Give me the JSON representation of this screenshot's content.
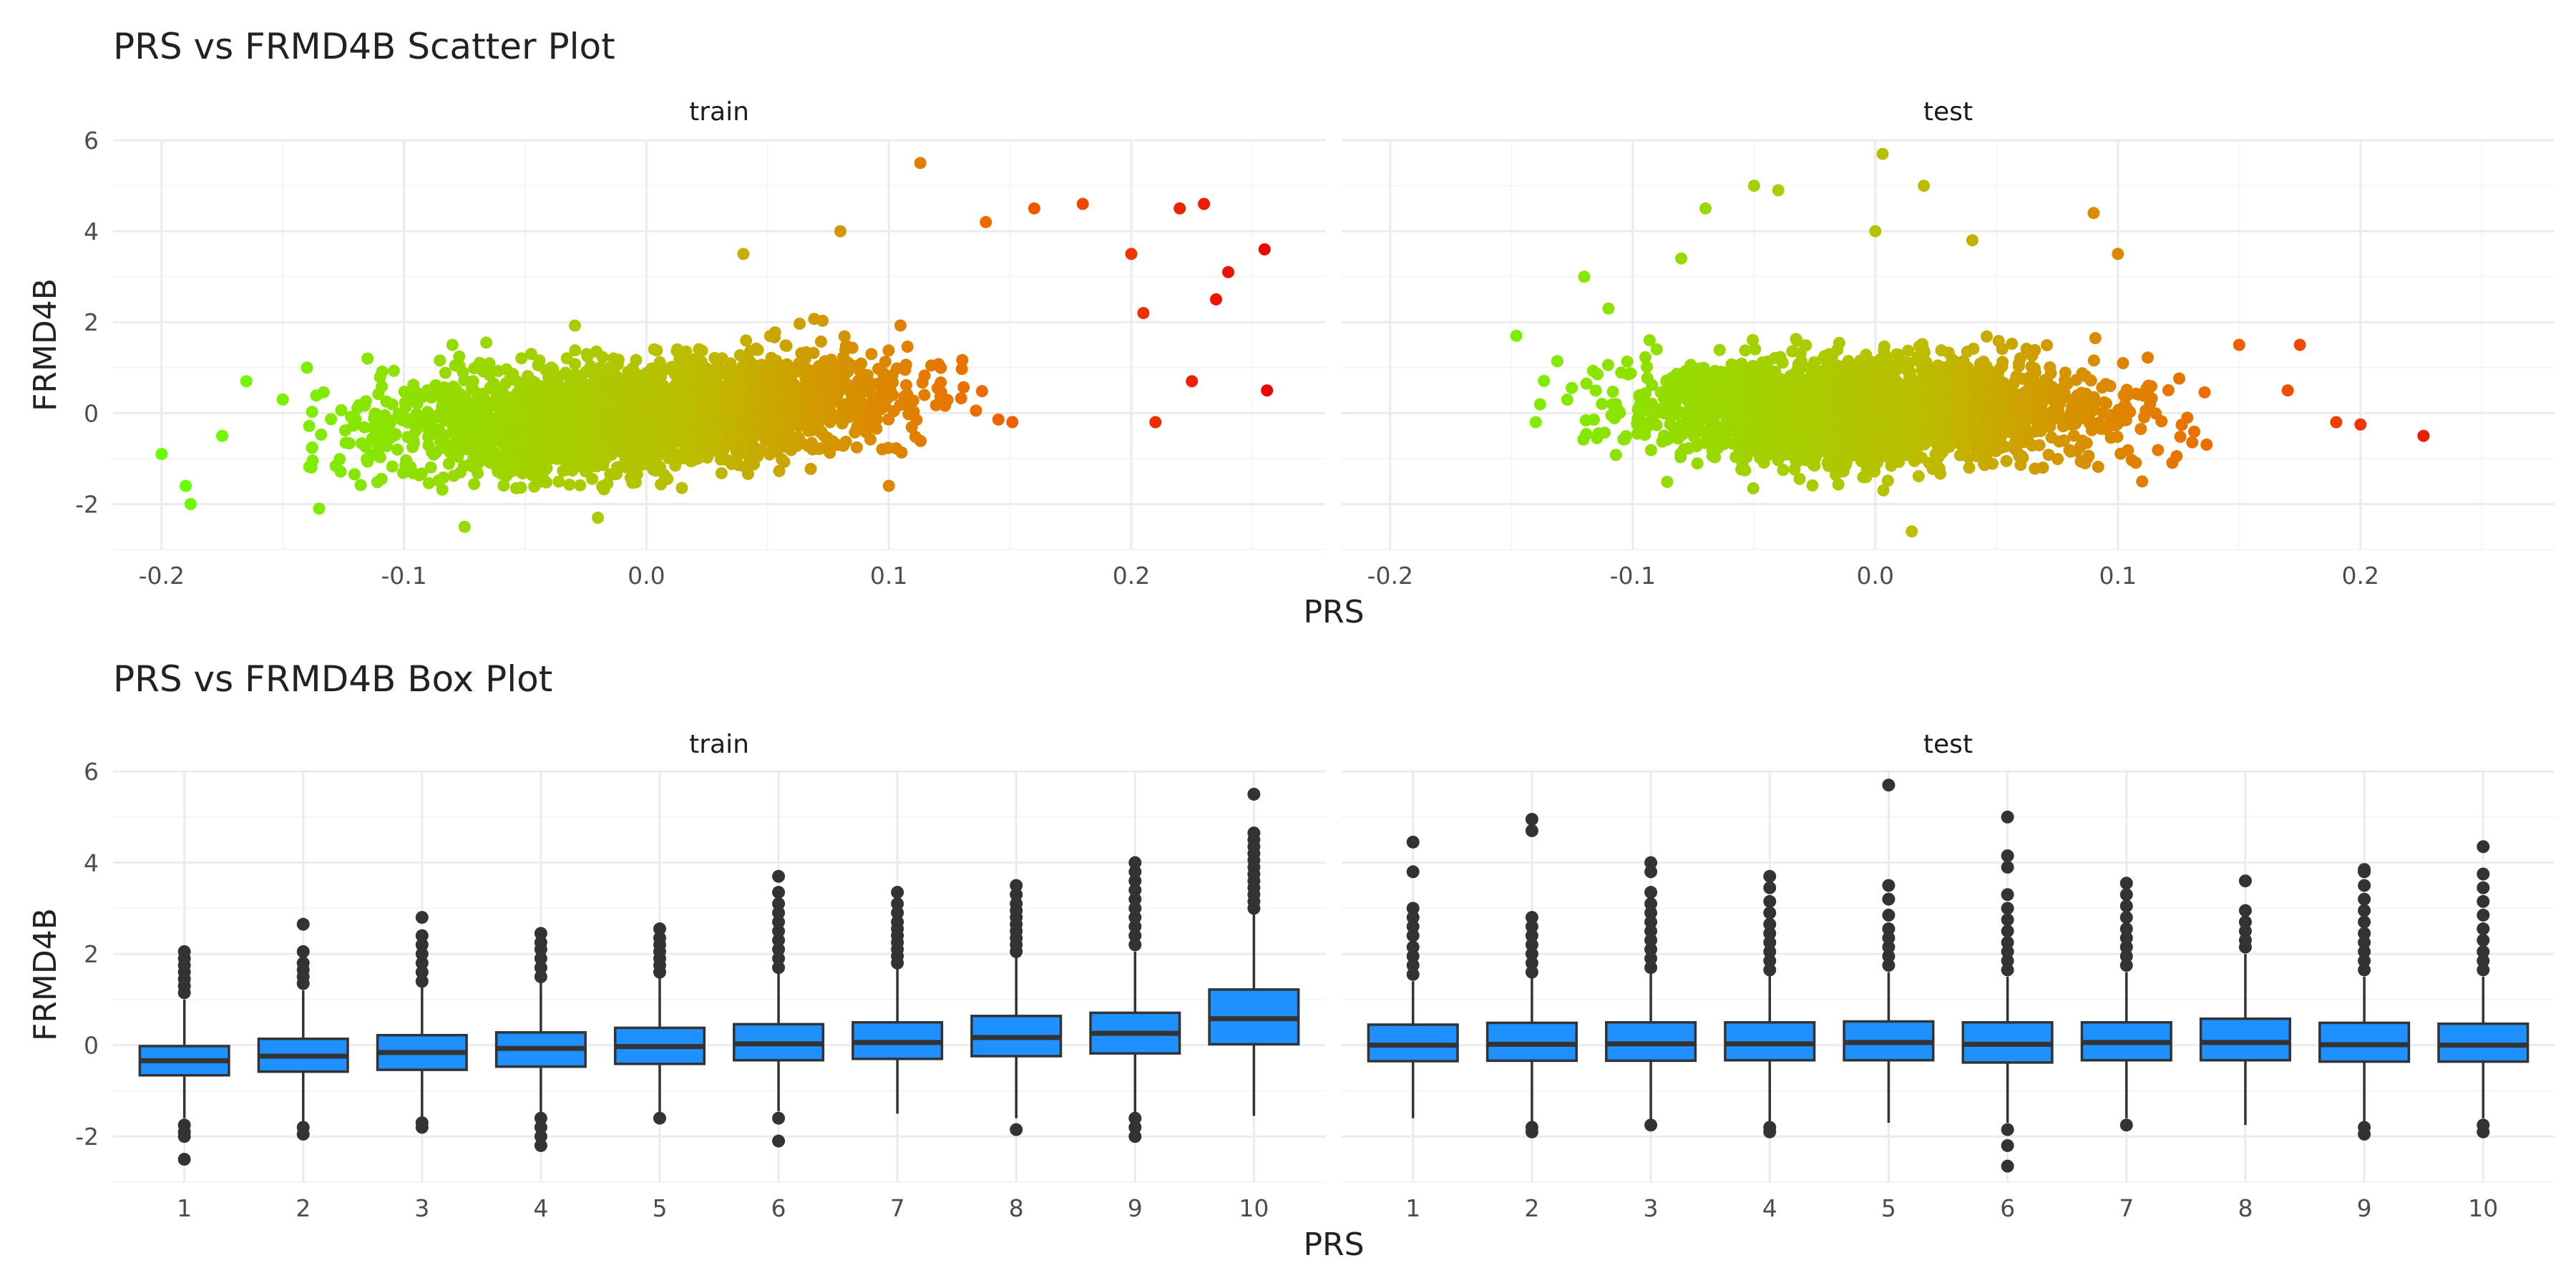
{
  "colors": {
    "box_fill": "#1E90FF",
    "outline": "#333333",
    "grid_major": "#ebebeb",
    "grid_minor": "#f5f5f5",
    "low": "#66FF00",
    "mid": "#BDBD00",
    "high": "#EE6A00",
    "extreme": "#EE0000"
  },
  "chart_data": [
    {
      "type": "scatter",
      "title": "PRS vs FRMD4B Scatter Plot",
      "xlabel": "PRS",
      "ylabel": "FRMD4B",
      "facets": [
        "train",
        "test"
      ],
      "xlim": [
        -0.22,
        0.28
      ],
      "ylim": [
        -3,
        6
      ],
      "x_ticks": [
        -0.2,
        -0.1,
        0.0,
        0.1,
        0.2
      ],
      "x_tick_labels": [
        "-0.2",
        "-0.1",
        "0.0",
        "0.1",
        "0.2"
      ],
      "y_ticks": [
        -2,
        0,
        2,
        4,
        6
      ],
      "y_tick_labels": [
        "-2",
        "0",
        "2",
        "4",
        "6"
      ],
      "color_by": "PRS",
      "grid": true,
      "legend": "none",
      "series": [
        {
          "facet": "train",
          "points": [
            [
              -0.2,
              -0.9
            ],
            [
              -0.19,
              -1.6
            ],
            [
              -0.188,
              -2.0
            ],
            [
              -0.175,
              -0.5
            ],
            [
              -0.165,
              0.7
            ],
            [
              -0.15,
              0.3
            ],
            [
              -0.14,
              1.0
            ],
            [
              -0.135,
              -2.1
            ],
            [
              -0.115,
              1.2
            ],
            [
              -0.08,
              1.5
            ],
            [
              -0.075,
              -2.5
            ],
            [
              -0.02,
              -2.3
            ],
            [
              0.04,
              3.5
            ],
            [
              0.08,
              4.0
            ],
            [
              0.113,
              5.5
            ],
            [
              0.1,
              -1.6
            ],
            [
              0.14,
              4.2
            ],
            [
              0.16,
              4.5
            ],
            [
              0.18,
              4.6
            ],
            [
              0.2,
              3.5
            ],
            [
              0.205,
              2.2
            ],
            [
              0.21,
              -0.2
            ],
            [
              0.22,
              4.5
            ],
            [
              0.225,
              0.7
            ],
            [
              0.23,
              4.6
            ],
            [
              0.235,
              2.5
            ],
            [
              0.24,
              3.1
            ],
            [
              0.255,
              3.6
            ],
            [
              0.256,
              0.5
            ]
          ]
        },
        {
          "facet": "test",
          "points": [
            [
              -0.148,
              1.7
            ],
            [
              -0.14,
              -0.2
            ],
            [
              -0.12,
              3.0
            ],
            [
              -0.11,
              2.3
            ],
            [
              -0.08,
              3.4
            ],
            [
              -0.07,
              4.5
            ],
            [
              -0.05,
              5.0
            ],
            [
              -0.04,
              4.9
            ],
            [
              0.0,
              4.0
            ],
            [
              0.003,
              5.7
            ],
            [
              0.015,
              -2.6
            ],
            [
              0.02,
              5.0
            ],
            [
              0.04,
              3.8
            ],
            [
              0.09,
              4.4
            ],
            [
              0.1,
              3.5
            ],
            [
              0.11,
              -1.5
            ],
            [
              0.15,
              1.5
            ],
            [
              0.17,
              0.5
            ],
            [
              0.175,
              1.5
            ],
            [
              0.19,
              -0.2
            ],
            [
              0.2,
              -0.25
            ],
            [
              0.226,
              -0.5
            ]
          ]
        }
      ]
    },
    {
      "type": "box",
      "title": "PRS vs FRMD4B Box Plot",
      "xlabel": "PRS",
      "ylabel": "FRMD4B",
      "facets": [
        "train",
        "test"
      ],
      "categories": [
        "1",
        "2",
        "3",
        "4",
        "5",
        "6",
        "7",
        "8",
        "9",
        "10"
      ],
      "ylim": [
        -3,
        6
      ],
      "y_ticks": [
        -2,
        0,
        2,
        4,
        6
      ],
      "y_tick_labels": [
        "-2",
        "0",
        "2",
        "4",
        "6"
      ],
      "grid": true,
      "legend": "none",
      "series": [
        {
          "facet": "train",
          "boxes": [
            {
              "q1": -0.66,
              "median": -0.34,
              "q3": -0.02,
              "lower": -1.6,
              "upper": 1.0,
              "outliers": [
                -1.75,
                -1.9,
                -2.0,
                -2.5,
                1.15,
                1.3,
                1.45,
                1.6,
                1.75,
                1.9,
                2.05
              ]
            },
            {
              "q1": -0.58,
              "median": -0.24,
              "q3": 0.14,
              "lower": -1.7,
              "upper": 1.2,
              "outliers": [
                -1.8,
                -1.95,
                1.35,
                1.5,
                1.65,
                1.8,
                2.05,
                2.65
              ]
            },
            {
              "q1": -0.54,
              "median": -0.16,
              "q3": 0.22,
              "lower": -1.6,
              "upper": 1.3,
              "outliers": [
                -1.7,
                -1.8,
                1.4,
                1.6,
                1.8,
                2.0,
                2.2,
                2.4,
                2.8
              ]
            },
            {
              "q1": -0.47,
              "median": -0.07,
              "q3": 0.28,
              "lower": -1.5,
              "upper": 1.4,
              "outliers": [
                -1.6,
                -1.8,
                -2.0,
                -2.2,
                1.5,
                1.7,
                1.9,
                2.1,
                2.25,
                2.45
              ]
            },
            {
              "q1": -0.41,
              "median": -0.03,
              "q3": 0.38,
              "lower": -1.5,
              "upper": 1.5,
              "outliers": [
                -1.6,
                1.6,
                1.75,
                1.9,
                2.05,
                2.2,
                2.35,
                2.55
              ]
            },
            {
              "q1": -0.33,
              "median": 0.03,
              "q3": 0.46,
              "lower": -1.45,
              "upper": 1.6,
              "outliers": [
                -1.6,
                -2.1,
                1.7,
                1.9,
                2.1,
                2.3,
                2.5,
                2.7,
                2.9,
                3.1,
                3.35,
                3.7
              ]
            },
            {
              "q1": -0.3,
              "median": 0.06,
              "q3": 0.5,
              "lower": -1.5,
              "upper": 1.7,
              "outliers": [
                1.8,
                1.95,
                2.1,
                2.25,
                2.4,
                2.55,
                2.7,
                2.9,
                3.1,
                3.35
              ]
            },
            {
              "q1": -0.24,
              "median": 0.17,
              "q3": 0.64,
              "lower": -1.6,
              "upper": 1.95,
              "outliers": [
                -1.85,
                2.05,
                2.2,
                2.35,
                2.5,
                2.65,
                2.8,
                2.95,
                3.1,
                3.3,
                3.5
              ]
            },
            {
              "q1": -0.18,
              "median": 0.26,
              "q3": 0.71,
              "lower": -1.5,
              "upper": 2.05,
              "outliers": [
                -1.6,
                -1.8,
                -2.0,
                2.2,
                2.4,
                2.6,
                2.8,
                3.0,
                3.2,
                3.4,
                3.6,
                3.8,
                4.0
              ]
            },
            {
              "q1": 0.02,
              "median": 0.58,
              "q3": 1.22,
              "lower": -1.55,
              "upper": 2.9,
              "outliers": [
                3.0,
                3.15,
                3.3,
                3.45,
                3.6,
                3.75,
                3.9,
                4.05,
                4.2,
                4.35,
                4.5,
                4.65,
                5.5
              ]
            }
          ]
        },
        {
          "facet": "test",
          "boxes": [
            {
              "q1": -0.35,
              "median": 0.0,
              "q3": 0.45,
              "lower": -1.6,
              "upper": 1.4,
              "outliers": [
                1.55,
                1.75,
                1.95,
                2.15,
                2.4,
                2.6,
                2.8,
                3.0,
                3.8,
                4.45
              ]
            },
            {
              "q1": -0.34,
              "median": 0.02,
              "q3": 0.49,
              "lower": -1.7,
              "upper": 1.5,
              "outliers": [
                -1.8,
                -1.9,
                1.6,
                1.8,
                2.0,
                2.2,
                2.4,
                2.6,
                2.8,
                4.7,
                4.95
              ]
            },
            {
              "q1": -0.34,
              "median": 0.03,
              "q3": 0.5,
              "lower": -1.65,
              "upper": 1.6,
              "outliers": [
                -1.75,
                1.7,
                1.9,
                2.1,
                2.3,
                2.5,
                2.7,
                2.9,
                3.1,
                3.35,
                3.8,
                4.0
              ]
            },
            {
              "q1": -0.33,
              "median": 0.03,
              "q3": 0.5,
              "lower": -1.7,
              "upper": 1.55,
              "outliers": [
                -1.8,
                -1.9,
                1.65,
                1.85,
                2.05,
                2.25,
                2.45,
                2.65,
                2.9,
                3.15,
                3.45,
                3.7
              ]
            },
            {
              "q1": -0.33,
              "median": 0.06,
              "q3": 0.52,
              "lower": -1.7,
              "upper": 1.6,
              "outliers": [
                1.75,
                1.95,
                2.15,
                2.35,
                2.55,
                2.85,
                3.2,
                3.5,
                5.7
              ]
            },
            {
              "q1": -0.38,
              "median": 0.02,
              "q3": 0.5,
              "lower": -1.7,
              "upper": 1.5,
              "outliers": [
                -1.85,
                -2.2,
                -2.65,
                1.65,
                1.85,
                2.05,
                2.25,
                2.5,
                2.75,
                3.0,
                3.3,
                3.9,
                4.15,
                5.0
              ]
            },
            {
              "q1": -0.33,
              "median": 0.06,
              "q3": 0.5,
              "lower": -1.6,
              "upper": 1.6,
              "outliers": [
                -1.75,
                1.75,
                1.95,
                2.15,
                2.35,
                2.55,
                2.8,
                3.05,
                3.3,
                3.55
              ]
            },
            {
              "q1": -0.33,
              "median": 0.06,
              "q3": 0.58,
              "lower": -1.75,
              "upper": 2.0,
              "outliers": [
                2.15,
                2.3,
                2.5,
                2.7,
                2.95,
                3.6
              ]
            },
            {
              "q1": -0.36,
              "median": 0.01,
              "q3": 0.49,
              "lower": -1.7,
              "upper": 1.5,
              "outliers": [
                -1.8,
                -1.95,
                1.65,
                1.85,
                2.05,
                2.25,
                2.45,
                2.7,
                2.95,
                3.2,
                3.5,
                3.8,
                3.85
              ]
            },
            {
              "q1": -0.36,
              "median": 0.0,
              "q3": 0.47,
              "lower": -1.6,
              "upper": 1.5,
              "outliers": [
                -1.75,
                -1.9,
                1.65,
                1.85,
                2.05,
                2.3,
                2.55,
                2.85,
                3.15,
                3.45,
                3.75,
                4.35
              ]
            }
          ]
        }
      ]
    }
  ]
}
